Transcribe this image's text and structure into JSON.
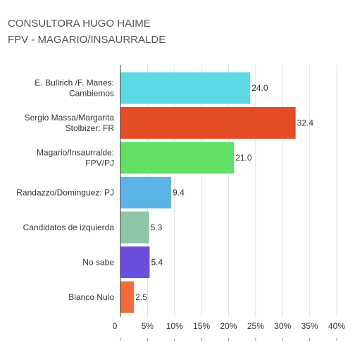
{
  "header": {
    "title_line1": "CONSULTORA HUGO HAIME",
    "title_line2": "FPV - MAGARIO/INSAURRALDE"
  },
  "chart_data": {
    "type": "bar",
    "orientation": "horizontal",
    "title": "CONSULTORA HUGO HAIME\nFPV - MAGARIO/INSAURRALDE",
    "xlabel": "",
    "ylabel": "",
    "xlim": [
      0,
      40
    ],
    "grid": true,
    "legend": "none",
    "categories": [
      [
        "E. Bullrich /F. Manes:",
        "Cambiemos"
      ],
      [
        "Sergio Massa/Margarita",
        "Stolbizer: FR"
      ],
      [
        "Magario/Insaurralde:",
        "FPV/PJ"
      ],
      [
        "Randazzo/Dominguez: PJ"
      ],
      [
        "Candidatos de izquierda"
      ],
      [
        "No sabe"
      ],
      [
        "Blanco Nulo"
      ]
    ],
    "values": [
      24.0,
      32.4,
      21.0,
      9.4,
      5.3,
      5.4,
      2.5
    ],
    "value_labels": [
      "24.0",
      "32.4",
      "21.0",
      "9.4",
      "5.3",
      "5.4",
      "2.5"
    ],
    "colors": [
      "#5dd9e5",
      "#e44c25",
      "#5fe065",
      "#5cb3e6",
      "#8ec6a9",
      "#6b4fdc",
      "#f26c3b"
    ],
    "ticks": [
      0,
      5,
      10,
      15,
      20,
      25,
      30,
      35,
      40
    ],
    "tick_labels": [
      "0",
      "5%",
      "10%",
      "15%",
      "20%",
      "25%",
      "30%",
      "35%",
      "40%"
    ]
  }
}
